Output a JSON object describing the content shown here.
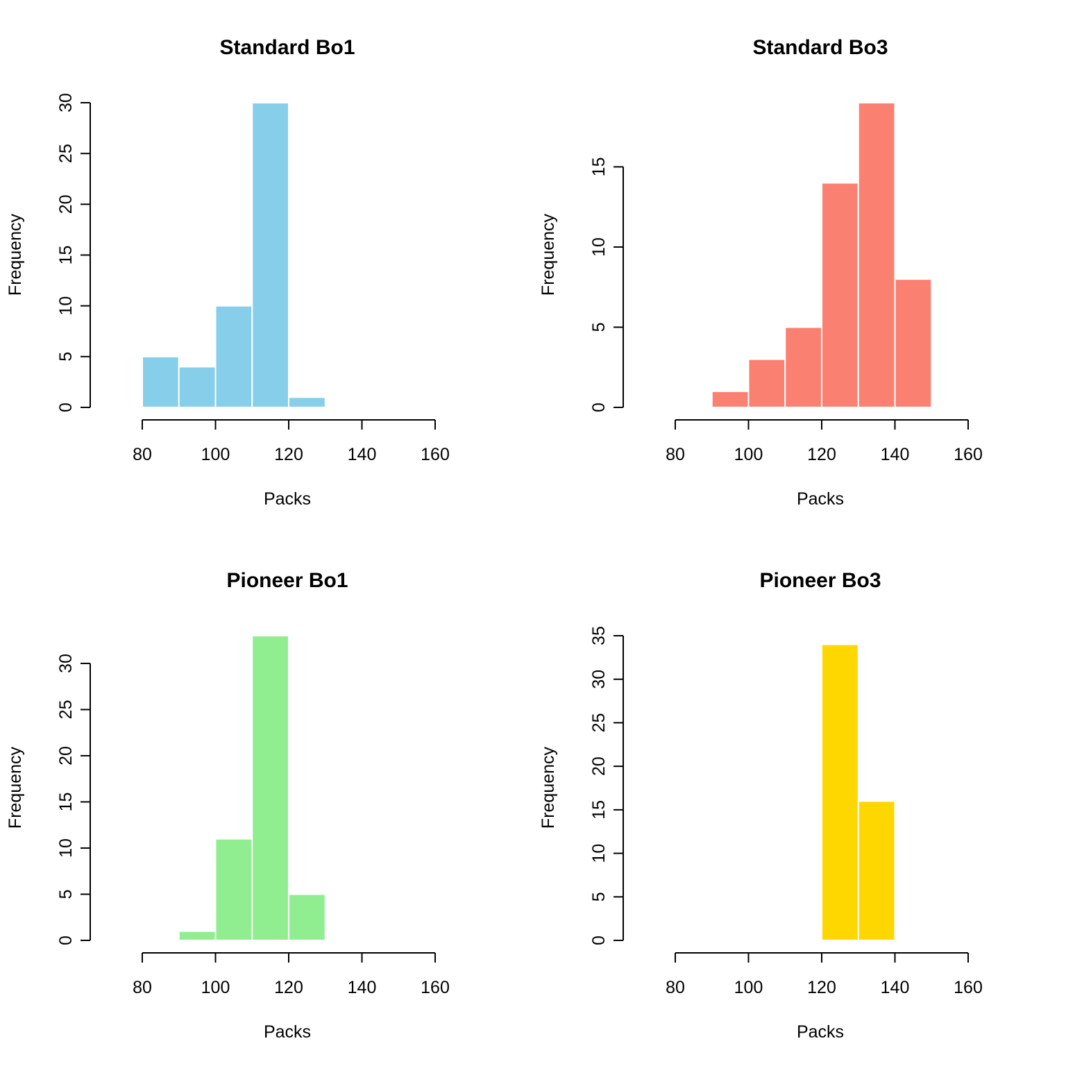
{
  "chart_data": [
    {
      "type": "bar",
      "title": "Standard Bo1",
      "xlabel": "Packs",
      "ylabel": "Frequency",
      "color": "#87CEEB",
      "bin_edges": [
        80,
        90,
        100,
        110,
        120,
        130
      ],
      "values": [
        5,
        4,
        10,
        30,
        1
      ],
      "xlim": [
        80,
        160
      ],
      "xticks": [
        80,
        100,
        120,
        140,
        160
      ],
      "yticks": [
        0,
        5,
        10,
        15,
        20,
        25,
        30
      ],
      "ylim": [
        0,
        30
      ]
    },
    {
      "type": "bar",
      "title": "Standard Bo3",
      "xlabel": "Packs",
      "ylabel": "Frequency",
      "color": "#FA8072",
      "bin_edges": [
        90,
        100,
        110,
        120,
        130,
        140,
        150
      ],
      "values": [
        1,
        3,
        5,
        14,
        19,
        8
      ],
      "xlim": [
        80,
        160
      ],
      "xticks": [
        80,
        100,
        120,
        140,
        160
      ],
      "yticks": [
        0,
        5,
        10,
        15
      ],
      "ylim": [
        0,
        19
      ]
    },
    {
      "type": "bar",
      "title": "Pioneer Bo1",
      "xlabel": "Packs",
      "ylabel": "Frequency",
      "color": "#90EE90",
      "bin_edges": [
        90,
        100,
        110,
        120,
        130
      ],
      "values": [
        1,
        11,
        33,
        5
      ],
      "xlim": [
        80,
        160
      ],
      "xticks": [
        80,
        100,
        120,
        140,
        160
      ],
      "yticks": [
        0,
        5,
        10,
        15,
        20,
        25,
        30
      ],
      "ylim": [
        0,
        33
      ]
    },
    {
      "type": "bar",
      "title": "Pioneer Bo3",
      "xlabel": "Packs",
      "ylabel": "Frequency",
      "color": "#FFD700",
      "bin_edges": [
        120,
        130,
        140
      ],
      "values": [
        34,
        16
      ],
      "xlim": [
        80,
        160
      ],
      "xticks": [
        80,
        100,
        120,
        140,
        160
      ],
      "yticks": [
        0,
        5,
        10,
        15,
        20,
        25,
        30,
        35
      ],
      "ylim": [
        0,
        35
      ]
    }
  ]
}
